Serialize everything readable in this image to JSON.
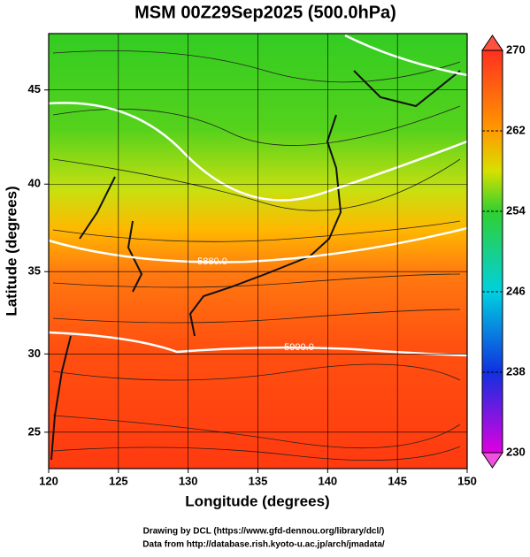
{
  "chart_data": {
    "type": "map",
    "title": "MSM 00Z29Sep2025 (500.0hPa)",
    "x_label": "Longitude (degrees)",
    "y_label": "Latitude  (degrees)",
    "projection": "mercator",
    "xlim": [
      120,
      150
    ],
    "xticks": [
      120,
      125,
      130,
      135,
      140,
      145,
      150
    ],
    "ylim": [
      22.6,
      47.8
    ],
    "yticks": [
      25,
      30,
      35,
      40,
      45
    ],
    "grid": true,
    "contour_labels": [
      "5880.0",
      "5900.0"
    ],
    "colorbar": {
      "lim": [
        230,
        270
      ],
      "ticks": [
        230,
        238,
        246,
        254,
        262,
        270
      ]
    },
    "footer": [
      "Drawing by DCL (https://www.gfd-dennou.org/library/dcl/)",
      "Data from http://database.rish.kyoto-u.ac.jp/arch/jmadata/"
    ]
  }
}
